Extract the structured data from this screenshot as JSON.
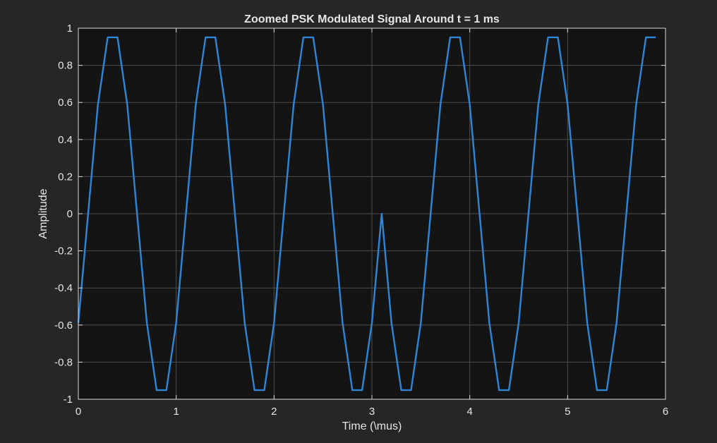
{
  "chart_data": {
    "type": "line",
    "title": "Zoomed PSK Modulated Signal Around t = 1 ms",
    "xlabel": "Time  (\\mus)",
    "ylabel": "Amplitude",
    "xlim": [
      0,
      6
    ],
    "ylim": [
      -1,
      1
    ],
    "xticks": [
      0,
      1,
      2,
      3,
      4,
      5,
      6
    ],
    "xtick_labels": [
      "0",
      "1",
      "2",
      "3",
      "4",
      "5",
      "6"
    ],
    "yticks": [
      -1,
      -0.8,
      -0.6,
      -0.4,
      -0.2,
      0,
      0.2,
      0.4,
      0.6,
      0.8,
      1
    ],
    "ytick_labels": [
      "-1",
      "-0.8",
      "-0.6",
      "-0.4",
      "-0.2",
      "0",
      "0.2",
      "0.4",
      "0.6",
      "0.8",
      "1"
    ],
    "grid": true,
    "colors": {
      "figure_bg": "#262626",
      "axes_bg": "#141414",
      "grid": "#4d4d4d",
      "axis": "#d9d9d9",
      "text": "#e6e6e6",
      "line": "#2f86d6"
    },
    "series": [
      {
        "x": [
          0,
          0.1,
          0.2,
          0.3,
          0.4,
          0.5,
          0.6,
          0.7,
          0.8,
          0.9,
          1.0,
          1.1,
          1.2,
          1.3,
          1.4,
          1.5,
          1.6,
          1.7,
          1.8,
          1.9,
          2.0,
          2.1,
          2.2,
          2.3,
          2.4,
          2.5,
          2.6,
          2.7,
          2.8,
          2.9,
          3.0,
          3.1,
          3.2,
          3.3,
          3.4,
          3.5,
          3.6,
          3.7,
          3.8,
          3.9,
          4.0,
          4.1,
          4.2,
          4.3,
          4.4,
          4.5,
          4.6,
          4.7,
          4.8,
          4.9,
          5.0,
          5.1,
          5.2,
          5.3,
          5.4,
          5.5,
          5.6,
          5.7,
          5.8,
          5.9
        ],
        "y": [
          -0.588,
          0,
          0.588,
          0.951,
          0.951,
          0.588,
          0,
          -0.588,
          -0.951,
          -0.951,
          -0.588,
          0,
          0.588,
          0.951,
          0.951,
          0.588,
          0,
          -0.588,
          -0.951,
          -0.951,
          -0.588,
          0,
          0.588,
          0.951,
          0.951,
          0.588,
          0,
          -0.588,
          -0.951,
          -0.951,
          -0.588,
          0,
          -0.588,
          -0.951,
          -0.951,
          -0.588,
          0,
          0.588,
          0.951,
          0.951,
          0.588,
          0,
          -0.588,
          -0.951,
          -0.951,
          -0.588,
          0,
          0.588,
          0.951,
          0.951,
          0.588,
          0,
          -0.588,
          -0.951,
          -0.951,
          -0.588,
          0,
          0.588,
          0.951,
          0.951
        ]
      }
    ]
  }
}
